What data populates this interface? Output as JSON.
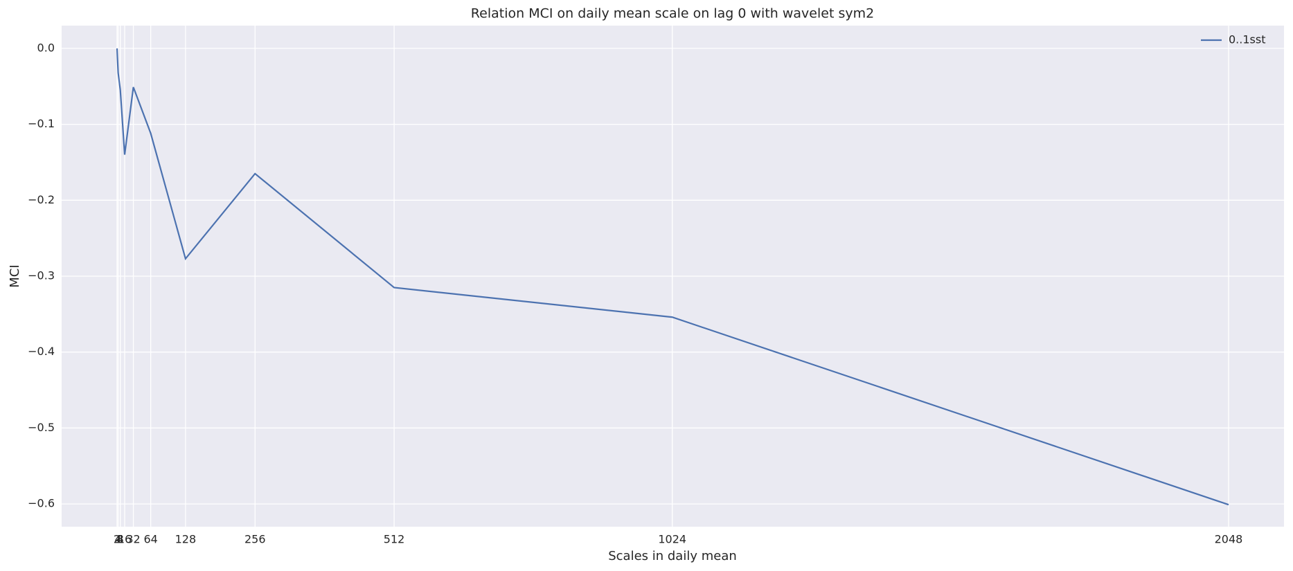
{
  "chart_data": {
    "type": "line",
    "title": "Relation MCI on daily mean scale on lag 0 with wavelet sym2",
    "x_label": "Scales in daily mean",
    "y_label": "MCI",
    "x": [
      2,
      4,
      8,
      16,
      32,
      64,
      128,
      256,
      512,
      1024,
      2048
    ],
    "series": [
      {
        "name": "0..1sst",
        "color": "#4c72b0",
        "values": [
          0.0,
          -0.032,
          -0.055,
          -0.14,
          -0.051,
          -0.112,
          -0.277,
          -0.165,
          -0.315,
          -0.354,
          -0.601
        ]
      }
    ],
    "xlim": [
      -100,
      2150
    ],
    "ylim": [
      -0.63,
      0.03
    ],
    "xticks": [
      2,
      4,
      8,
      16,
      32,
      64,
      128,
      256,
      512,
      1024,
      2048
    ],
    "yticks": [
      {
        "value": 0,
        "label": "0.0"
      },
      {
        "value": -0.1,
        "label": "−0.1"
      },
      {
        "value": -0.2,
        "label": "−0.2"
      },
      {
        "value": -0.3,
        "label": "−0.3"
      },
      {
        "value": -0.4,
        "label": "−0.4"
      },
      {
        "value": -0.5,
        "label": "−0.5"
      },
      {
        "value": -0.6,
        "label": "−0.6"
      }
    ],
    "grid": true,
    "legend": "upper right"
  }
}
